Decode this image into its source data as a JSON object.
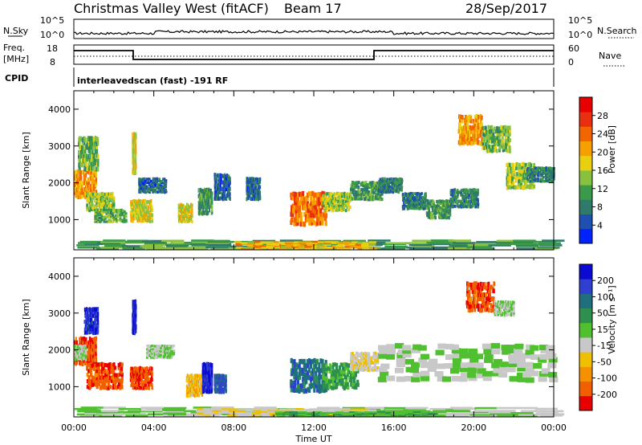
{
  "header": {
    "station": "Christmas Valley West (fitACF)",
    "beam": "Beam 17",
    "date": "28/Sep/2017"
  },
  "top_panels": {
    "nsky_label": "N.Sky",
    "nsky_ticks": [
      "10^5",
      "10^0"
    ],
    "nsearch_label": "N.Search",
    "nsearch_ticks": [
      "10^5",
      "10^0"
    ],
    "freq_label_1": "Freq.",
    "freq_label_2": "[MHz]",
    "freq_ticks": [
      "18",
      "8"
    ],
    "nave_label": "Nave",
    "nave_ticks": [
      "60",
      "0"
    ],
    "cpid_label": "CPID",
    "cpid_text": "interleavedscan (fast) -191 RF"
  },
  "chart_data": [
    {
      "type": "heatmap",
      "name": "power",
      "ylabel": "Slant Range [km]",
      "xlabel": "Time UT",
      "ylim": [
        180,
        4500
      ],
      "y_ticks": [
        "4000",
        "3000",
        "2000",
        "1000"
      ],
      "x_ticks": [
        "00:00",
        "04:00",
        "08:00",
        "12:00",
        "16:00",
        "20:00",
        "00:00"
      ],
      "colorbar_label": "Power [dB]",
      "colorbar_ticks": [
        "28",
        "24",
        "20",
        "16",
        "12",
        "8",
        "4"
      ],
      "colors": [
        "#0022ff",
        "#1f4fb0",
        "#2f7a6a",
        "#3a9a4a",
        "#88c040",
        "#e8d010",
        "#f5a000",
        "#f26500",
        "#e83010",
        "#e80000"
      ],
      "patches": [
        {
          "t0": 0.0,
          "t1": 1.1,
          "r0": 1550,
          "r1": 2300,
          "v": 22
        },
        {
          "t0": 0.2,
          "t1": 1.2,
          "r0": 2300,
          "r1": 3200,
          "v": 14
        },
        {
          "t0": 0.6,
          "t1": 2.0,
          "r0": 1200,
          "r1": 1700,
          "v": 16
        },
        {
          "t0": 1.0,
          "t1": 2.6,
          "r0": 900,
          "r1": 1250,
          "v": 14
        },
        {
          "t0": 2.9,
          "t1": 3.1,
          "r0": 2200,
          "r1": 3300,
          "v": 18
        },
        {
          "t0": 2.8,
          "t1": 3.9,
          "r0": 900,
          "r1": 1500,
          "v": 18
        },
        {
          "t0": 3.2,
          "t1": 4.6,
          "r0": 1700,
          "r1": 2100,
          "v": 8
        },
        {
          "t0": 5.2,
          "t1": 5.9,
          "r0": 900,
          "r1": 1400,
          "v": 18
        },
        {
          "t0": 6.2,
          "t1": 6.9,
          "r0": 1100,
          "r1": 1800,
          "v": 12
        },
        {
          "t0": 7.0,
          "t1": 7.8,
          "r0": 1500,
          "r1": 2200,
          "v": 8
        },
        {
          "t0": 8.6,
          "t1": 9.3,
          "r0": 1500,
          "r1": 2100,
          "v": 8
        },
        {
          "t0": 10.8,
          "t1": 12.6,
          "r0": 800,
          "r1": 1700,
          "v": 24
        },
        {
          "t0": 12.4,
          "t1": 13.8,
          "r0": 1200,
          "r1": 1700,
          "v": 16
        },
        {
          "t0": 13.8,
          "t1": 15.4,
          "r0": 1500,
          "r1": 2000,
          "v": 12
        },
        {
          "t0": 15.2,
          "t1": 16.4,
          "r0": 1700,
          "r1": 2100,
          "v": 10
        },
        {
          "t0": 16.4,
          "t1": 17.6,
          "r0": 1250,
          "r1": 1700,
          "v": 10
        },
        {
          "t0": 17.6,
          "t1": 18.8,
          "r0": 1000,
          "r1": 1500,
          "v": 12
        },
        {
          "t0": 18.8,
          "t1": 20.2,
          "r0": 1300,
          "r1": 1800,
          "v": 10
        },
        {
          "t0": 19.2,
          "t1": 20.4,
          "r0": 3000,
          "r1": 3800,
          "v": 22
        },
        {
          "t0": 20.4,
          "t1": 21.8,
          "r0": 2800,
          "r1": 3500,
          "v": 14
        },
        {
          "t0": 21.6,
          "t1": 23.0,
          "r0": 1800,
          "r1": 2500,
          "v": 16
        },
        {
          "t0": 22.6,
          "t1": 24.0,
          "r0": 2000,
          "r1": 2400,
          "v": 10
        },
        {
          "t0": 0.0,
          "t1": 24.0,
          "r0": 180,
          "r1": 420,
          "v": 12
        },
        {
          "t0": 8.0,
          "t1": 15.0,
          "r0": 180,
          "r1": 380,
          "v": 20
        }
      ]
    },
    {
      "type": "heatmap",
      "name": "velocity",
      "ylabel": "Slant Range [km]",
      "xlabel": "Time UT",
      "ylim": [
        180,
        4500
      ],
      "y_ticks": [
        "4000",
        "3000",
        "2000",
        "1000"
      ],
      "x_ticks": [
        "00:00",
        "04:00",
        "08:00",
        "12:00",
        "16:00",
        "20:00",
        "00:00"
      ],
      "colorbar_label": "Velocity [m s⁻¹]",
      "colorbar_ticks": [
        "200",
        "100",
        "50",
        "15",
        "-15",
        "-50",
        "-100",
        "-200"
      ],
      "colors": [
        "#0a0ad0",
        "#2f3fcf",
        "#1f6f7f",
        "#2f8f4f",
        "#50c030",
        "#c8c8c8",
        "#f0c000",
        "#f59000",
        "#f06000",
        "#e80000"
      ],
      "patches": [
        {
          "t0": 0.0,
          "t1": 1.1,
          "r0": 1550,
          "r1": 2300,
          "v": -180
        },
        {
          "t0": 0.0,
          "t1": 0.6,
          "r0": 1700,
          "r1": 2100,
          "v": 0
        },
        {
          "t0": 0.5,
          "t1": 1.2,
          "r0": 2400,
          "r1": 3100,
          "v": 180
        },
        {
          "t0": 0.6,
          "t1": 2.4,
          "r0": 900,
          "r1": 1600,
          "v": -180
        },
        {
          "t0": 2.9,
          "t1": 3.1,
          "r0": 2400,
          "r1": 3300,
          "v": 200
        },
        {
          "t0": 2.8,
          "t1": 3.9,
          "r0": 900,
          "r1": 1500,
          "v": -180
        },
        {
          "t0": 3.6,
          "t1": 5.0,
          "r0": 1750,
          "r1": 2100,
          "v": 0
        },
        {
          "t0": 5.6,
          "t1": 6.4,
          "r0": 700,
          "r1": 1300,
          "v": -80
        },
        {
          "t0": 6.4,
          "t1": 6.9,
          "r0": 800,
          "r1": 1600,
          "v": 200
        },
        {
          "t0": 7.0,
          "t1": 7.6,
          "r0": 800,
          "r1": 1300,
          "v": 150
        },
        {
          "t0": 10.8,
          "t1": 12.6,
          "r0": 800,
          "r1": 1700,
          "v": 120
        },
        {
          "t0": 12.4,
          "t1": 14.2,
          "r0": 900,
          "r1": 1600,
          "v": 60
        },
        {
          "t0": 13.8,
          "t1": 15.2,
          "r0": 1400,
          "r1": 1900,
          "v": -40
        },
        {
          "t0": 15.2,
          "t1": 24.0,
          "r0": 1100,
          "r1": 2100,
          "v": 0
        },
        {
          "t0": 19.6,
          "t1": 21.0,
          "r0": 3000,
          "r1": 3800,
          "v": -180
        },
        {
          "t0": 21.0,
          "t1": 22.0,
          "r0": 2900,
          "r1": 3300,
          "v": 0
        },
        {
          "t0": 0.0,
          "t1": 24.0,
          "r0": 180,
          "r1": 420,
          "v": 0
        },
        {
          "t0": 6.0,
          "t1": 15.0,
          "r0": 180,
          "r1": 380,
          "v": -40
        },
        {
          "t0": 10.0,
          "t1": 18.0,
          "r0": 180,
          "r1": 300,
          "v": 40
        }
      ]
    }
  ]
}
